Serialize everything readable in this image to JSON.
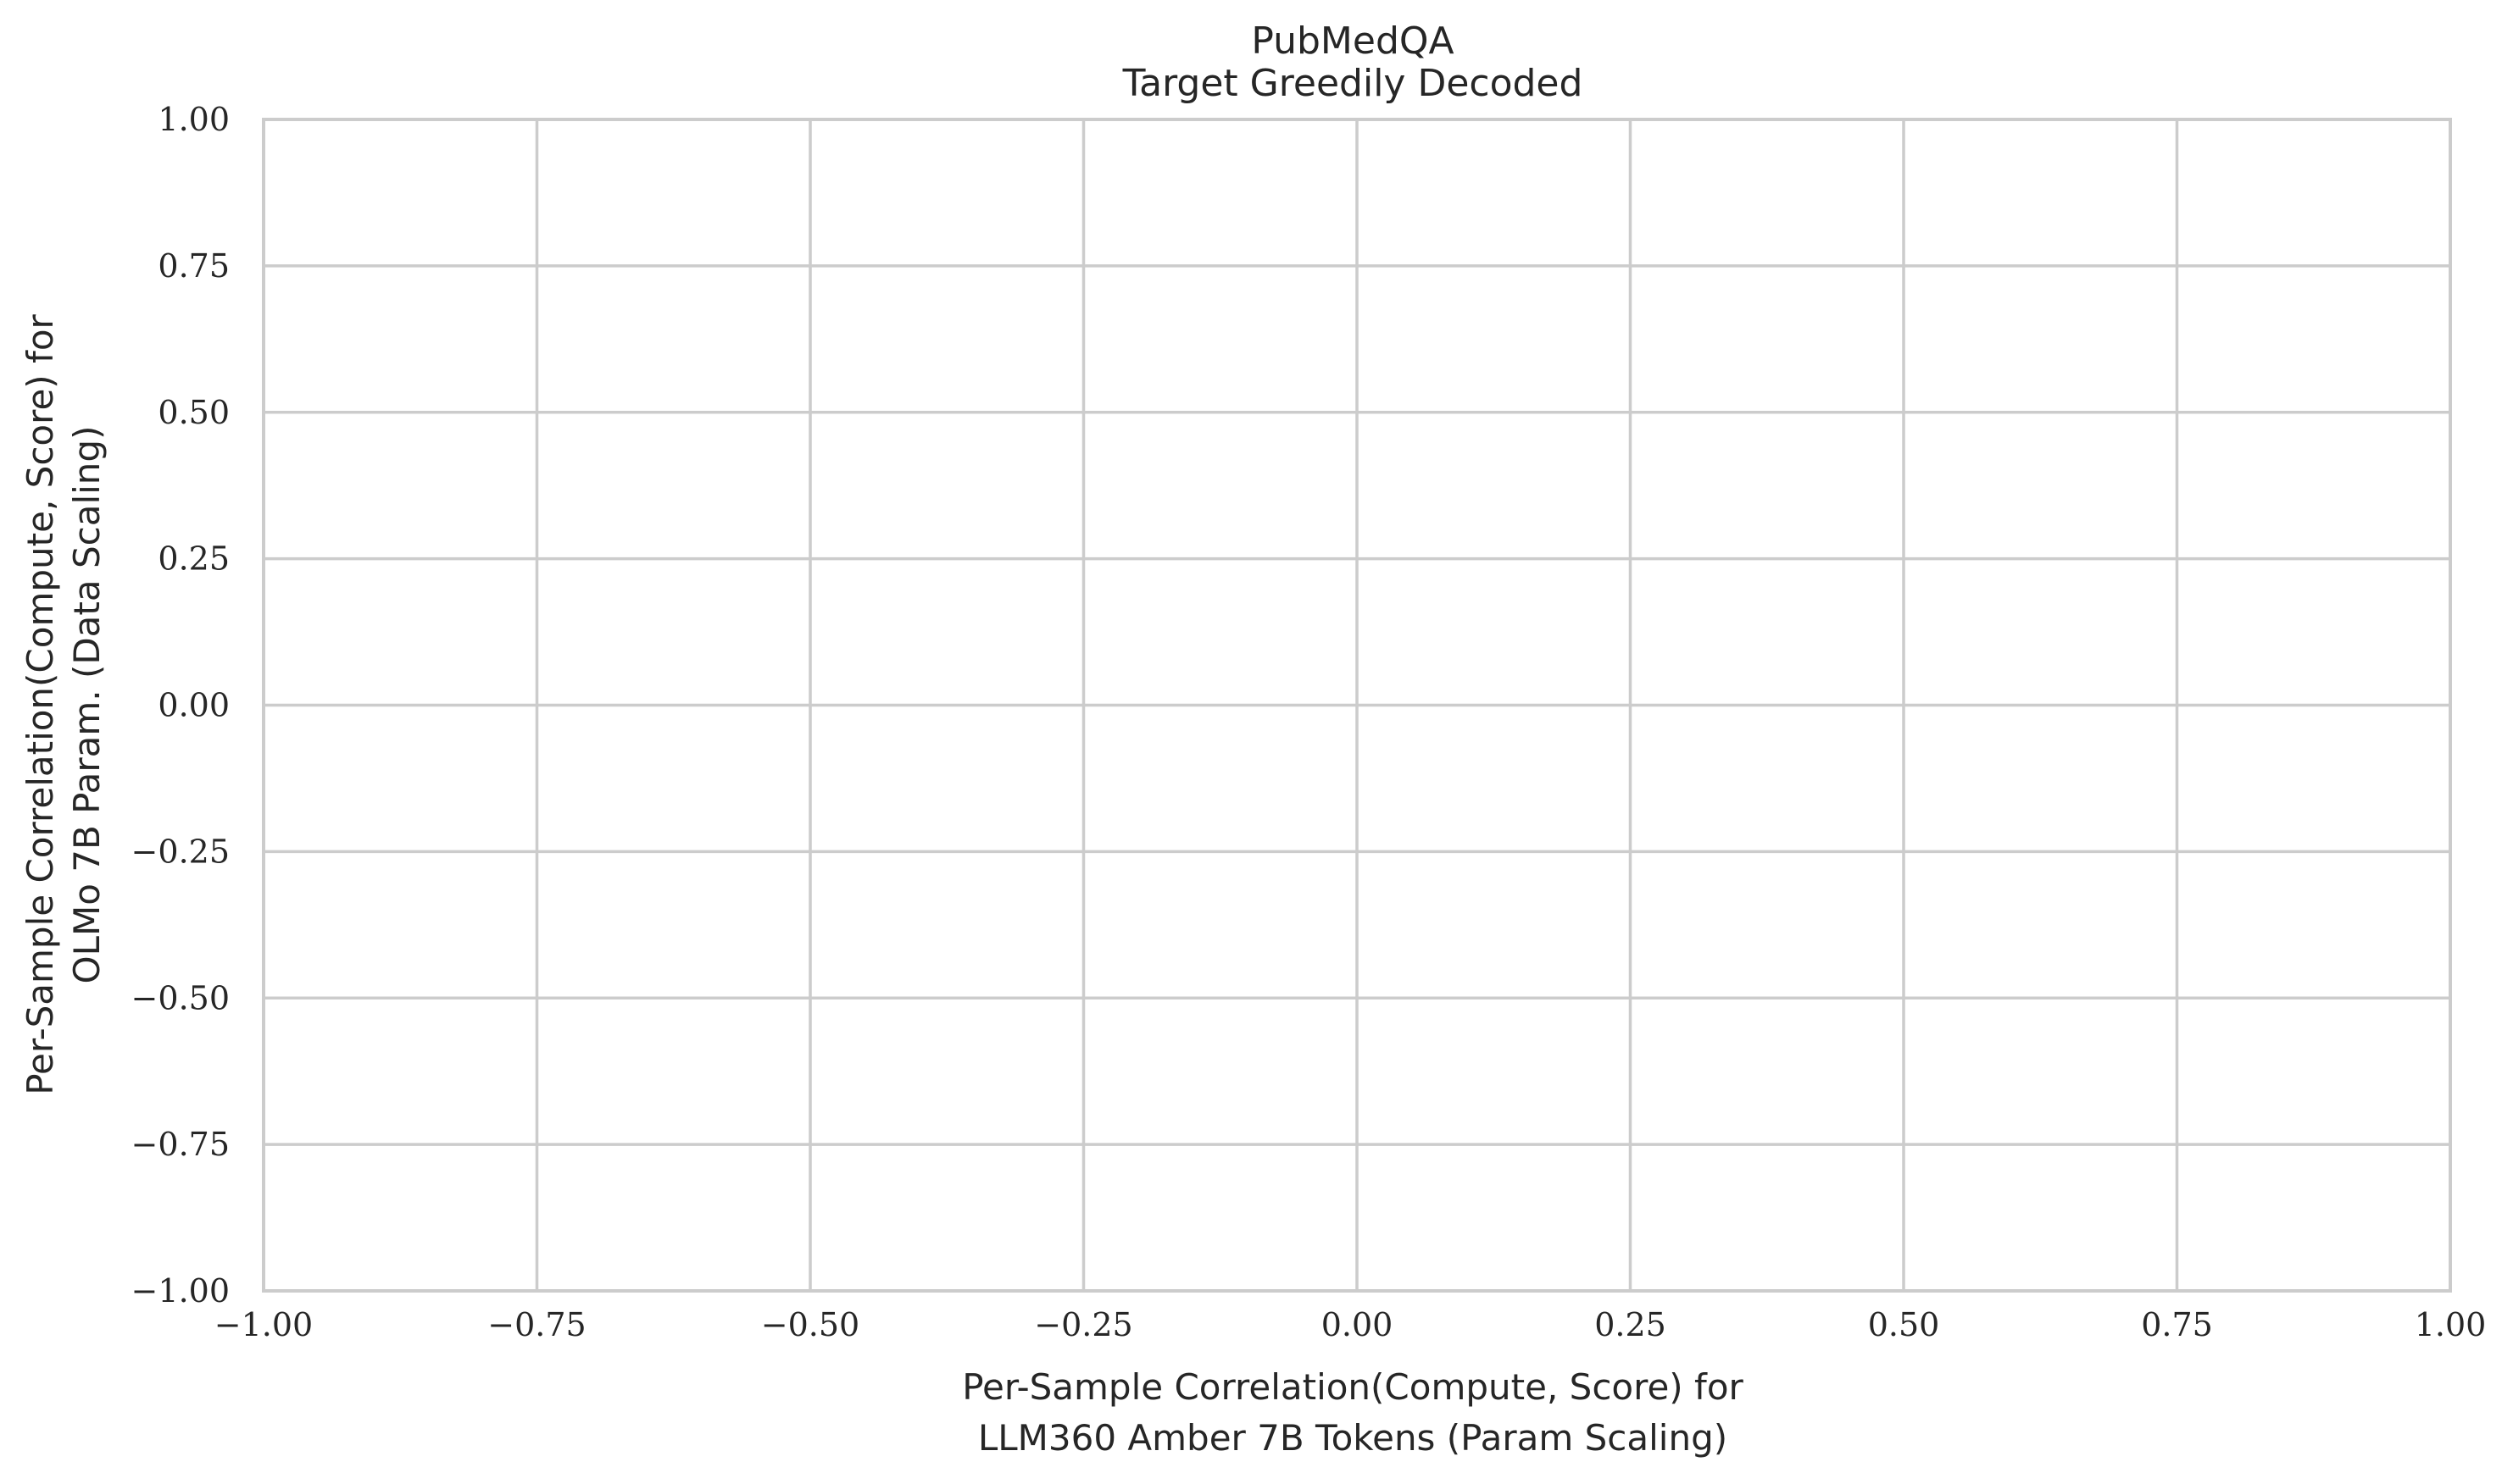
{
  "chart_data": {
    "type": "scatter",
    "title": [
      "PubMedQA",
      "Target Greedily Decoded"
    ],
    "xlabel": [
      "Per-Sample Correlation(Compute, Score) for",
      "LLM360 Amber 7B Tokens (Param Scaling)"
    ],
    "ylabel": [
      "Per-Sample Correlation(Compute, Score) for",
      "OLMo 7B Param. (Data Scaling)"
    ],
    "xlim": [
      -1.0,
      1.0
    ],
    "ylim": [
      -1.0,
      1.0
    ],
    "xticks": [
      -1.0,
      -0.75,
      -0.5,
      -0.25,
      0.0,
      0.25,
      0.5,
      0.75,
      1.0
    ],
    "yticks": [
      -1.0,
      -0.75,
      -0.5,
      -0.25,
      0.0,
      0.25,
      0.5,
      0.75,
      1.0
    ],
    "xtick_labels": [
      "−1.00",
      "−0.75",
      "−0.50",
      "−0.25",
      "0.00",
      "0.25",
      "0.50",
      "0.75",
      "1.00"
    ],
    "ytick_labels": [
      "−1.00",
      "−0.75",
      "−0.50",
      "−0.25",
      "0.00",
      "0.25",
      "0.50",
      "0.75",
      "1.00"
    ],
    "grid": true,
    "series": [],
    "colors": {
      "grid": "#cccccc",
      "text": "#262626",
      "background": "#ffffff"
    }
  }
}
